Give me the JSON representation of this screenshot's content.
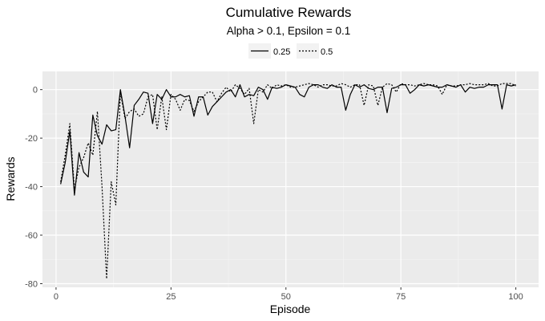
{
  "chart_data": {
    "type": "line",
    "title": "Cumulative Rewards",
    "subtitle": "Alpha > 0.1, Epsilon = 0.1",
    "xlabel": "Episode",
    "ylabel": "Rewards",
    "xlim": [
      -2.95,
      104.95
    ],
    "ylim": [
      -81.5,
      7.5
    ],
    "x_ticks": [
      0,
      25,
      50,
      75,
      100
    ],
    "x_tick_labels": [
      "0",
      "25",
      "50",
      "75",
      "100"
    ],
    "y_ticks": [
      0,
      -20,
      -40,
      -60,
      -80
    ],
    "y_tick_labels": [
      "0",
      "-20",
      "-40",
      "-60",
      "-80"
    ],
    "grid": true,
    "legend_position": "top",
    "background": "#ebebeb",
    "series": [
      {
        "name": "0.25",
        "linetype": "solid",
        "color": "#000000",
        "x": [
          1,
          2,
          3,
          4,
          5,
          6,
          7,
          8,
          9,
          10,
          11,
          12,
          13,
          14,
          15,
          16,
          17,
          18,
          19,
          20,
          21,
          22,
          23,
          24,
          25,
          26,
          27,
          28,
          29,
          30,
          31,
          32,
          33,
          34,
          35,
          36,
          37,
          38,
          39,
          40,
          41,
          42,
          43,
          44,
          45,
          46,
          47,
          48,
          49,
          50,
          51,
          52,
          53,
          54,
          55,
          56,
          57,
          58,
          59,
          60,
          61,
          62,
          63,
          64,
          65,
          66,
          67,
          68,
          69,
          70,
          71,
          72,
          73,
          74,
          75,
          76,
          77,
          78,
          79,
          80,
          81,
          82,
          83,
          84,
          85,
          86,
          87,
          88,
          89,
          90,
          91,
          92,
          93,
          94,
          95,
          96,
          97,
          98,
          99,
          100
        ],
        "values": [
          -39,
          -30,
          -17,
          -43.5,
          -26,
          -34,
          -36,
          -10.5,
          -19,
          -22.5,
          -14.5,
          -17,
          -16.5,
          0,
          -11,
          -24,
          -6.5,
          -4,
          -1,
          -1.5,
          -14,
          -2,
          -4,
          0,
          -3,
          -3,
          -2,
          -3,
          -2.5,
          -11,
          -3,
          -3,
          -10.5,
          -7,
          -5,
          -3,
          -1,
          0,
          -3,
          2,
          -3,
          -2,
          -2.5,
          1,
          0,
          -4,
          1,
          0.5,
          1,
          2,
          1.5,
          1,
          -2,
          -3,
          1,
          2,
          2,
          1,
          0.5,
          2,
          1,
          1,
          -8.5,
          -2,
          2,
          1,
          2,
          0.5,
          0,
          1,
          1,
          -9.5,
          0.5,
          1,
          2,
          2,
          -1.5,
          0,
          2,
          1.5,
          2,
          1.5,
          1,
          1,
          2,
          1.5,
          1,
          2,
          -1,
          1,
          0.5,
          1,
          1,
          2,
          2,
          2,
          -8,
          2,
          1.5,
          2
        ]
      },
      {
        "name": "0.5",
        "linetype": "dotted",
        "color": "#000000",
        "x": [
          1,
          2,
          3,
          4,
          5,
          6,
          7,
          8,
          9,
          10,
          11,
          12,
          13,
          14,
          15,
          16,
          17,
          18,
          19,
          20,
          21,
          22,
          23,
          24,
          25,
          26,
          27,
          28,
          29,
          30,
          31,
          32,
          33,
          34,
          35,
          36,
          37,
          38,
          39,
          40,
          41,
          42,
          43,
          44,
          45,
          46,
          47,
          48,
          49,
          50,
          51,
          52,
          53,
          54,
          55,
          56,
          57,
          58,
          59,
          60,
          61,
          62,
          63,
          64,
          65,
          66,
          67,
          68,
          69,
          70,
          71,
          72,
          73,
          74,
          75,
          76,
          77,
          78,
          79,
          80,
          81,
          82,
          83,
          84,
          85,
          86,
          87,
          88,
          89,
          90,
          91,
          92,
          93,
          94,
          95,
          96,
          97,
          98,
          99,
          100
        ],
        "values": [
          -38,
          -27,
          -14,
          -41,
          -32,
          -28,
          -22,
          -27,
          -9,
          -40,
          -78,
          -38,
          -47.5,
          -1,
          -12,
          -9,
          -8,
          -11,
          -10,
          -3,
          -2,
          -16.5,
          -3,
          -16.5,
          -2,
          -4,
          -8.5,
          -4,
          -4.5,
          -9,
          -5,
          -3,
          -1,
          -1,
          -5,
          -1.5,
          1,
          -1,
          2,
          0.5,
          -2,
          0.5,
          -14,
          0,
          -1,
          2,
          0.5,
          2,
          1.5,
          2,
          1,
          1,
          1.5,
          2,
          2.5,
          2,
          1,
          2,
          2,
          1.5,
          1.5,
          2.5,
          2,
          1,
          2,
          2,
          -6.5,
          2,
          1.5,
          -6.5,
          1,
          2.5,
          2,
          -1,
          2.5,
          2,
          2,
          1.5,
          2,
          2.5,
          2,
          2,
          1.5,
          -2,
          2,
          1.5,
          1.5,
          2,
          2,
          2.5,
          2,
          2,
          2,
          2.5,
          1.5,
          1.5,
          2.5,
          2.5,
          2.5,
          1.5
        ]
      }
    ]
  }
}
